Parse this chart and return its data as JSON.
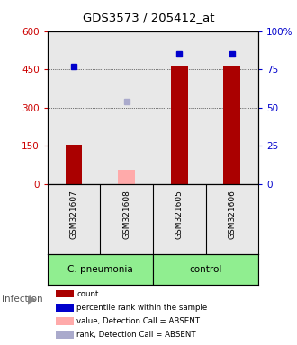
{
  "title": "GDS3573 / 205412_at",
  "samples": [
    "GSM321607",
    "GSM321608",
    "GSM321605",
    "GSM321606"
  ],
  "count_values": [
    155,
    null,
    465,
    465
  ],
  "count_absent": [
    null,
    55,
    null,
    null
  ],
  "percentile_present": [
    460,
    null,
    510,
    510
  ],
  "percentile_absent": [
    null,
    325,
    null,
    null
  ],
  "ylim_left": [
    0,
    600
  ],
  "ylim_right": [
    0,
    100
  ],
  "yticks_left": [
    0,
    150,
    300,
    450,
    600
  ],
  "yticks_right": [
    0,
    25,
    50,
    75,
    100
  ],
  "ytick_labels_left": [
    "0",
    "150",
    "300",
    "450",
    "600"
  ],
  "ytick_labels_right": [
    "0",
    "25",
    "50",
    "75",
    "100%"
  ],
  "left_axis_color": "#cc0000",
  "right_axis_color": "#0000cc",
  "bar_color_present": "#aa0000",
  "bar_color_absent": "#ffaaaa",
  "dot_color_present": "#0000cc",
  "dot_color_absent": "#aaaacc",
  "bg_plot": "#e8e8e8",
  "cpneumonia_color": "#90EE90",
  "control_color": "#90EE90",
  "infection_text": "infection",
  "legend_items": [
    {
      "label": "count",
      "color": "#aa0000"
    },
    {
      "label": "percentile rank within the sample",
      "color": "#0000cc"
    },
    {
      "label": "value, Detection Call = ABSENT",
      "color": "#ffaaaa"
    },
    {
      "label": "rank, Detection Call = ABSENT",
      "color": "#aaaacc"
    }
  ]
}
